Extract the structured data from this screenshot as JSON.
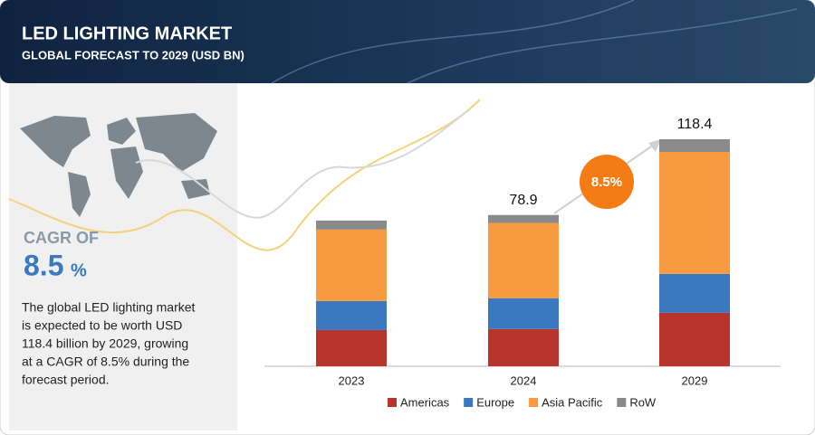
{
  "header": {
    "title": "LED LIGHTING MARKET",
    "subtitle": "GLOBAL FORECAST TO 2029 (USD BN)"
  },
  "panel": {
    "cagr_label": "CAGR OF",
    "cagr_value": "8.5",
    "cagr_unit": "%",
    "description": [
      "The global LED lighting market",
      "is expected to be worth USD",
      "118.4 billion by 2029, growing",
      "at a CAGR of 8.5% during the",
      "forecast period."
    ]
  },
  "chart_data": {
    "type": "stacked_bar",
    "categories": [
      "2023",
      "2024",
      "2029"
    ],
    "series": [
      {
        "name": "Americas",
        "color": "#b8352e",
        "values": [
          18.9,
          19.4,
          27.9
        ]
      },
      {
        "name": "Europe",
        "color": "#3b78c0",
        "values": [
          15.1,
          16.1,
          20.3
        ]
      },
      {
        "name": "Asia Pacific",
        "color": "#f79a40",
        "values": [
          37.3,
          39.2,
          63.6
        ]
      },
      {
        "name": "RoW",
        "color": "#8a8a8a",
        "values": [
          4.7,
          4.2,
          6.6
        ]
      }
    ],
    "totals": [
      null,
      78.9,
      118.4
    ],
    "annotation": "8.5%",
    "annotation_color": "#f57c14",
    "ylim": [
      0,
      125
    ]
  }
}
